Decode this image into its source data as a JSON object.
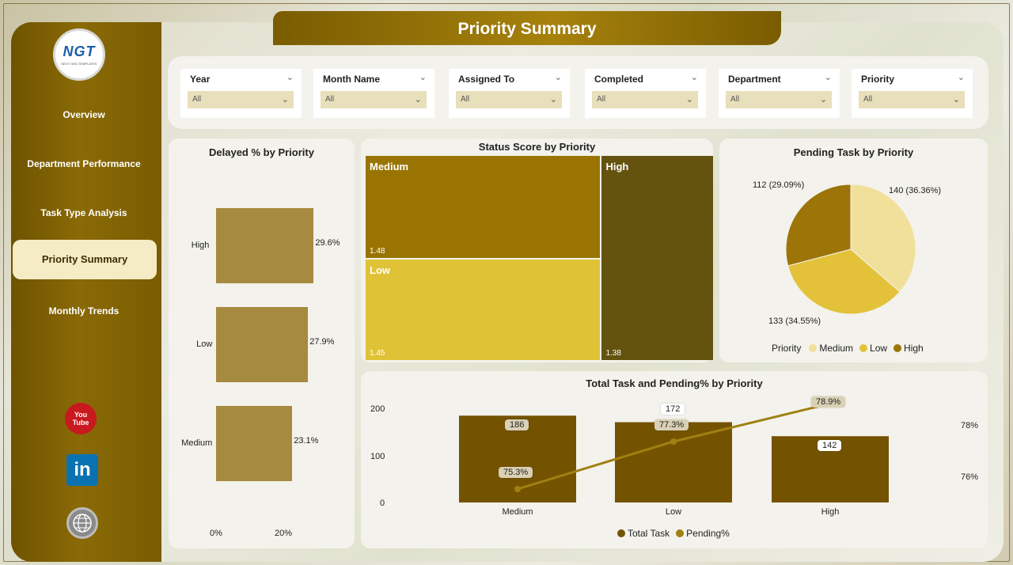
{
  "page": {
    "title": "Priority Summary"
  },
  "logo": {
    "text": "NGT",
    "subtitle": "NEXT GEN TEMPLATES"
  },
  "sidebar": {
    "items": [
      {
        "label": "Overview"
      },
      {
        "label": "Department Performance"
      },
      {
        "label": "Task Type Analysis"
      },
      {
        "label": "Priority Summary",
        "active": true
      },
      {
        "label": "Monthly Trends"
      }
    ],
    "youtube": {
      "line1": "You",
      "line2": "Tube"
    },
    "linkedin": "in"
  },
  "filters": [
    {
      "label": "Year",
      "value": "All"
    },
    {
      "label": "Month Name",
      "value": "All"
    },
    {
      "label": "Assigned To",
      "value": "All"
    },
    {
      "label": "Completed",
      "value": "All"
    },
    {
      "label": "Department",
      "value": "All"
    },
    {
      "label": "Priority",
      "value": "All"
    }
  ],
  "delayed": {
    "title": "Delayed % by Priority",
    "x_ticks": [
      "0%",
      "20%"
    ]
  },
  "treemap": {
    "title": "Status Score by Priority"
  },
  "pending": {
    "title": "Pending Task by Priority",
    "legend_title": "Priority"
  },
  "combo": {
    "title": "Total Task and Pending% by Priority",
    "y_ticks": [
      "200",
      "100",
      "0"
    ],
    "y2_ticks": [
      "78%",
      "76%"
    ],
    "legend": [
      "Total Task",
      "Pending%"
    ]
  },
  "chart_data": [
    {
      "type": "bar",
      "title": "Delayed % by Priority",
      "categories": [
        "High",
        "Low",
        "Medium"
      ],
      "values": [
        29.6,
        27.9,
        23.1
      ],
      "labels": [
        "29.6%",
        "27.9%",
        "23.1%"
      ],
      "xlim": [
        0,
        30
      ],
      "color": "#a68a3f"
    },
    {
      "type": "treemap",
      "title": "Status Score by Priority",
      "categories": [
        "Medium",
        "Low",
        "High"
      ],
      "values": [
        1.48,
        1.45,
        1.38
      ],
      "colors": [
        "#9a7402",
        "#e0c236",
        "#64520f"
      ]
    },
    {
      "type": "pie",
      "title": "Pending Task by Priority",
      "categories": [
        "Medium",
        "Low",
        "High"
      ],
      "values": [
        140,
        133,
        112
      ],
      "labels": [
        "140 (36.36%)",
        "133 (34.55%)",
        "112 (29.09%)"
      ],
      "colors": [
        "#f0e09a",
        "#e3c23a",
        "#9c7408"
      ]
    },
    {
      "type": "bar",
      "title": "Total Task and Pending% by Priority",
      "categories": [
        "Medium",
        "Low",
        "High"
      ],
      "series": [
        {
          "name": "Total Task",
          "values": [
            186,
            172,
            142
          ],
          "color": "#745300"
        },
        {
          "name": "Pending%",
          "values": [
            75.3,
            77.3,
            78.9
          ],
          "labels": [
            "75.3%",
            "77.3%",
            "78.9%"
          ],
          "color": "#a08012"
        }
      ],
      "ylim": [
        0,
        200
      ],
      "y2lim": [
        75,
        79
      ]
    }
  ]
}
